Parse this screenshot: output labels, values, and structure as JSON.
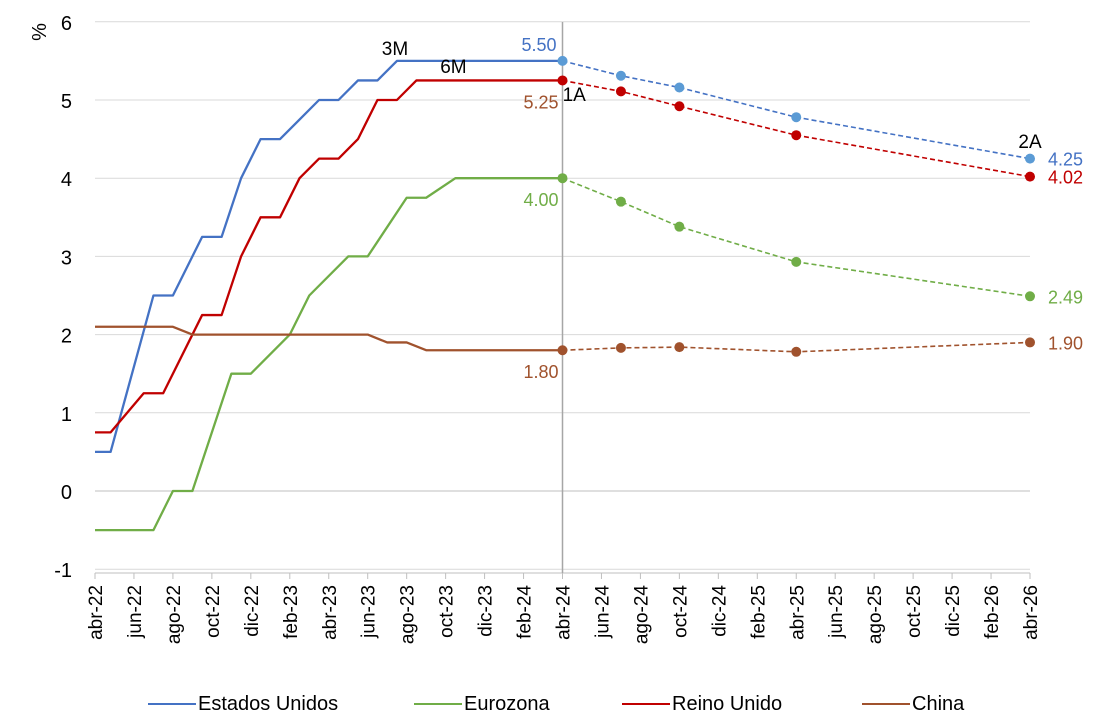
{
  "chart_data": {
    "type": "line",
    "ylabel": "%",
    "ylim": [
      -1,
      6
    ],
    "yticks": [
      "-1",
      "0",
      "1",
      "2",
      "3",
      "4",
      "5",
      "6"
    ],
    "x_ticks": [
      "abr-22",
      "jun-22",
      "ago-22",
      "oct-22",
      "dic-22",
      "feb-23",
      "abr-23",
      "jun-23",
      "ago-23",
      "oct-23",
      "dic-23",
      "feb-24",
      "abr-24",
      "jun-24",
      "ago-24",
      "oct-24",
      "dic-24",
      "feb-25",
      "abr-25",
      "jun-25",
      "ago-25",
      "oct-25",
      "dic-25",
      "feb-26",
      "abr-26"
    ],
    "horizon_labels": [
      {
        "text": "3M",
        "month": 15.4
      },
      {
        "text": "6M",
        "month": 18.4
      },
      {
        "text": "1A",
        "month": 24.6
      },
      {
        "text": "2A",
        "month": 48
      }
    ],
    "series": [
      {
        "name": "Estados Unidos",
        "color": "#4472C4",
        "marker_color": "#5B9BD5",
        "history": [
          [
            0,
            0.5
          ],
          [
            0.8,
            0.5
          ],
          [
            3,
            2.5
          ],
          [
            4,
            2.5
          ],
          [
            5.5,
            3.25
          ],
          [
            6.5,
            3.25
          ],
          [
            7.5,
            4.0
          ],
          [
            8.5,
            4.5
          ],
          [
            9.5,
            4.5
          ],
          [
            10.5,
            4.75
          ],
          [
            11.5,
            5.0
          ],
          [
            12.5,
            5.0
          ],
          [
            13.5,
            5.25
          ],
          [
            14.5,
            5.25
          ],
          [
            15.5,
            5.5
          ],
          [
            24,
            5.5
          ]
        ],
        "forecast": [
          [
            24,
            5.5
          ],
          [
            27,
            5.31
          ],
          [
            30,
            5.16
          ],
          [
            36,
            4.78
          ],
          [
            48,
            4.25
          ]
        ],
        "labels": [
          {
            "text": "5.50",
            "month": 24,
            "value": 5.5,
            "pos": "left"
          },
          {
            "text": "4.25",
            "month": 48,
            "value": 4.25,
            "pos": "right"
          }
        ]
      },
      {
        "name": "Eurozona",
        "color": "#70AD47",
        "marker_color": "#70AD47",
        "history": [
          [
            0,
            -0.5
          ],
          [
            3,
            -0.5
          ],
          [
            4,
            0
          ],
          [
            5,
            0
          ],
          [
            7,
            1.5
          ],
          [
            8,
            1.5
          ],
          [
            10,
            2.0
          ],
          [
            11,
            2.5
          ],
          [
            13,
            3.0
          ],
          [
            14,
            3.0
          ],
          [
            16,
            3.75
          ],
          [
            17,
            3.75
          ],
          [
            18.5,
            4.0
          ],
          [
            24,
            4.0
          ]
        ],
        "forecast": [
          [
            24,
            4.0
          ],
          [
            27,
            3.7
          ],
          [
            30,
            3.38
          ],
          [
            36,
            2.93
          ],
          [
            48,
            2.49
          ]
        ],
        "labels": [
          {
            "text": "4.00",
            "month": 24,
            "value": 4.0,
            "pos": "below-left"
          },
          {
            "text": "2.49",
            "month": 48,
            "value": 2.49,
            "pos": "right"
          }
        ]
      },
      {
        "name": "Reino Unido",
        "color": "#C00000",
        "marker_color": "#C00000",
        "history": [
          [
            0,
            0.75
          ],
          [
            0.8,
            0.75
          ],
          [
            2.5,
            1.25
          ],
          [
            3.5,
            1.25
          ],
          [
            5.5,
            2.25
          ],
          [
            6.5,
            2.25
          ],
          [
            7.5,
            3.0
          ],
          [
            8.5,
            3.5
          ],
          [
            9.5,
            3.5
          ],
          [
            10.5,
            4.0
          ],
          [
            11.5,
            4.25
          ],
          [
            12.5,
            4.25
          ],
          [
            13.5,
            4.5
          ],
          [
            14.5,
            5.0
          ],
          [
            15.5,
            5.0
          ],
          [
            16.5,
            5.25
          ],
          [
            24,
            5.25
          ]
        ],
        "forecast": [
          [
            24,
            5.25
          ],
          [
            27,
            5.11
          ],
          [
            30,
            4.92
          ],
          [
            36,
            4.55
          ],
          [
            48,
            4.02
          ]
        ],
        "labels": [
          {
            "text": "4.02",
            "month": 48,
            "value": 4.02,
            "pos": "right"
          }
        ]
      },
      {
        "name": "China",
        "color": "#A0522D",
        "marker_color": "#A0522D",
        "history": [
          [
            0,
            2.1
          ],
          [
            4,
            2.1
          ],
          [
            5,
            2.0
          ],
          [
            14,
            2.0
          ],
          [
            15,
            1.9
          ],
          [
            16,
            1.9
          ],
          [
            17,
            1.8
          ],
          [
            24,
            1.8
          ]
        ],
        "forecast": [
          [
            24,
            1.8
          ],
          [
            27,
            1.83
          ],
          [
            30,
            1.84
          ],
          [
            36,
            1.78
          ],
          [
            48,
            1.9
          ]
        ],
        "labels": [
          {
            "text": "5.25",
            "month": 24,
            "value": 5.25,
            "pos": "below-left"
          },
          {
            "text": "1.80",
            "month": 24,
            "value": 1.8,
            "pos": "below-left"
          },
          {
            "text": "1.90",
            "month": 48,
            "value": 1.9,
            "pos": "right"
          }
        ]
      }
    ],
    "legend_position": "bottom",
    "grid": "horizontal"
  }
}
